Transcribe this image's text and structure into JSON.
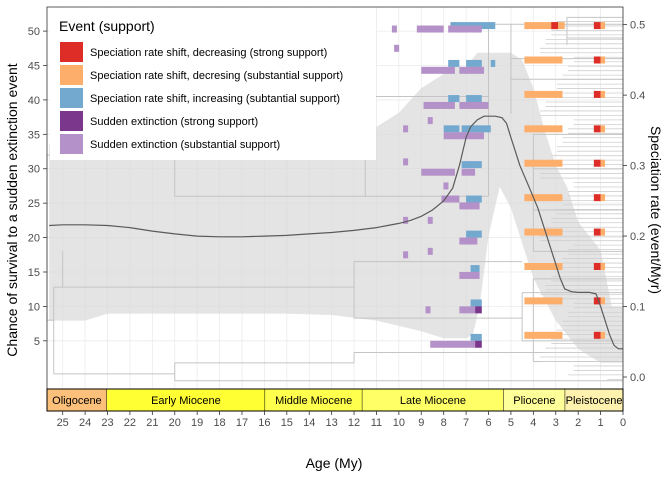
{
  "chart_data": {
    "type": "line",
    "title": "",
    "xlabel": "Age (My)",
    "ylabel_left": "Chance of survival to a sudden extinction event",
    "ylabel_right": "Speciation rate (event/Myr)",
    "x_ticks": [
      25,
      24,
      23,
      22,
      21,
      20,
      19,
      18,
      17,
      16,
      15,
      14,
      13,
      12,
      11,
      10,
      9,
      8,
      7,
      6,
      5,
      4,
      3,
      2,
      1,
      0
    ],
    "x_range": [
      25.7,
      0
    ],
    "y_left_ticks": [
      5,
      10,
      15,
      20,
      25,
      30,
      35,
      40,
      45,
      50
    ],
    "y_left_range": [
      -2,
      53.5
    ],
    "y_right_ticks": [
      "0.0",
      "0.1",
      "0.2",
      "0.3",
      "0.4",
      "0.5"
    ],
    "y_right_range": [
      -0.017,
      0.525
    ],
    "legend": {
      "title": "Event (support)",
      "position": "top-left",
      "items": [
        {
          "label": "Speciation rate shift, decreasing (strong support)",
          "color": "#DE2D26"
        },
        {
          "label": "Speciation rate shift, decresing (substantial support)",
          "color": "#FDAE6B"
        },
        {
          "label": "Speciation rate shift, increasing (subtantial support)",
          "color": "#74A9CF"
        },
        {
          "label": "Sudden extinction (strong support)",
          "color": "#7A378B"
        },
        {
          "label": "Sudden extinction (substantial support)",
          "color": "#B491C8"
        }
      ]
    },
    "epochs": [
      {
        "name": "Oligocene",
        "start": 25.7,
        "end": 23.03,
        "color": "#FDC07A"
      },
      {
        "name": "Early Miocene",
        "start": 23.03,
        "end": 15.97,
        "color": "#FFFF33"
      },
      {
        "name": "Middle Miocene",
        "start": 15.97,
        "end": 11.63,
        "color": "#FFFF4D"
      },
      {
        "name": "Late Miocene",
        "start": 11.63,
        "end": 5.33,
        "color": "#FFFF66"
      },
      {
        "name": "Pliocene",
        "start": 5.33,
        "end": 2.58,
        "color": "#FFFF99"
      },
      {
        "name": "Pleistocene",
        "start": 2.58,
        "end": 0.0,
        "color": "#FFF2AE"
      }
    ],
    "speciation_rate_series": {
      "name": "Speciation rate (right axis)",
      "x": [
        25.6,
        25,
        24,
        23,
        22,
        21,
        20,
        19,
        18,
        17,
        16,
        15,
        14,
        13,
        12,
        11,
        10,
        9.5,
        9,
        8.5,
        8,
        7.6,
        7.3,
        7.0,
        6.8,
        6.5,
        6.2,
        6.0,
        5.7,
        5.4,
        5.2,
        5.0,
        4.6,
        4.2,
        3.8,
        3.4,
        3.0,
        2.8,
        2.6,
        2.3,
        2.0,
        1.8,
        1.5,
        1.2,
        1.0,
        0.8,
        0.6,
        0.4,
        0.2,
        0.0
      ],
      "y": [
        0.215,
        0.216,
        0.216,
        0.215,
        0.212,
        0.207,
        0.203,
        0.2,
        0.199,
        0.199,
        0.2,
        0.201,
        0.203,
        0.205,
        0.208,
        0.212,
        0.218,
        0.222,
        0.228,
        0.237,
        0.25,
        0.268,
        0.3,
        0.34,
        0.355,
        0.365,
        0.37,
        0.37,
        0.37,
        0.368,
        0.36,
        0.34,
        0.3,
        0.27,
        0.24,
        0.2,
        0.16,
        0.14,
        0.125,
        0.121,
        0.12,
        0.12,
        0.12,
        0.118,
        0.1,
        0.08,
        0.06,
        0.045,
        0.04,
        0.04
      ]
    },
    "speciation_rate_ci_upper": {
      "x": [
        25.6,
        17,
        15.5,
        15,
        12,
        10,
        9,
        8,
        7.5,
        7,
        6.5,
        6,
        5.5,
        5,
        4.5,
        4,
        3.5,
        3,
        2.5,
        2,
        1.5,
        1,
        0.5,
        0
      ],
      "y": [
        0.33,
        0.33,
        0.33,
        0.335,
        0.335,
        0.375,
        0.41,
        0.43,
        0.44,
        0.44,
        0.46,
        0.46,
        0.46,
        0.46,
        0.45,
        0.41,
        0.35,
        0.3,
        0.27,
        0.22,
        0.2,
        0.18,
        0.1,
        0.1
      ]
    },
    "speciation_rate_ci_lower": {
      "x": [
        25.6,
        24,
        23,
        21,
        19,
        17,
        15,
        13,
        11,
        9,
        8,
        7.5,
        7,
        6.7,
        6.4,
        6.0,
        5.5,
        5.0,
        4.5,
        4.0,
        3.5,
        3.0,
        2.5,
        2.0,
        1.5,
        1.0,
        0.5,
        0
      ],
      "y": [
        0.08,
        0.08,
        0.09,
        0.09,
        0.09,
        0.09,
        0.09,
        0.088,
        0.08,
        0.065,
        0.055,
        0.055,
        0.055,
        0.06,
        0.1,
        0.2,
        0.27,
        0.24,
        0.19,
        0.14,
        0.11,
        0.08,
        0.06,
        0.04,
        0.03,
        0.02,
        0.02,
        0.02
      ]
    },
    "event_markers": [
      {
        "support": 4,
        "x": 10.2,
        "y": 50.3
      },
      {
        "support": 4,
        "x": 9.7,
        "y": 35.8
      },
      {
        "support": 4,
        "x": 9.7,
        "y": 31.0
      },
      {
        "support": 4,
        "x": 9.7,
        "y": 22.5
      },
      {
        "support": 4,
        "x": 9.7,
        "y": 17.5
      },
      {
        "support": 4,
        "x": 8.6,
        "y": 37.0
      },
      {
        "support": 4,
        "x": 8.6,
        "y": 22.5
      },
      {
        "support": 4,
        "x": 8.6,
        "y": 18.0
      },
      {
        "support": 4,
        "x": 7.9,
        "y": 27.5
      },
      {
        "support": 4,
        "x": 8.7,
        "y": 9.5
      },
      {
        "support": 4,
        "x": 10.1,
        "y": 47.5
      }
    ],
    "event_bars": [
      {
        "support": 2,
        "x_start": 7.7,
        "x_end": 5.7,
        "y": 50.8
      },
      {
        "support": 4,
        "x_start": 9.2,
        "x_end": 8.0,
        "y": 50.3
      },
      {
        "support": 4,
        "x_start": 7.8,
        "x_end": 6.3,
        "y": 50.3
      },
      {
        "support": 2,
        "x_start": 7.8,
        "x_end": 7.3,
        "y": 45.3
      },
      {
        "support": 2,
        "x_start": 7.0,
        "x_end": 6.3,
        "y": 45.3
      },
      {
        "support": 2,
        "x_start": 5.9,
        "x_end": 5.7,
        "y": 45.3
      },
      {
        "support": 4,
        "x_start": 9.0,
        "x_end": 7.5,
        "y": 44.3
      },
      {
        "support": 4,
        "x_start": 7.3,
        "x_end": 6.2,
        "y": 44.3
      },
      {
        "support": 2,
        "x_start": 7.8,
        "x_end": 7.3,
        "y": 40.2
      },
      {
        "support": 2,
        "x_start": 7.0,
        "x_end": 6.3,
        "y": 40.2
      },
      {
        "support": 4,
        "x_start": 8.9,
        "x_end": 7.5,
        "y": 39.2
      },
      {
        "support": 4,
        "x_start": 7.3,
        "x_end": 6.0,
        "y": 39.2
      },
      {
        "support": 2,
        "x_start": 8.0,
        "x_end": 7.3,
        "y": 35.8
      },
      {
        "support": 2,
        "x_start": 7.2,
        "x_end": 5.9,
        "y": 35.8
      },
      {
        "support": 4,
        "x_start": 8.0,
        "x_end": 6.2,
        "y": 34.8
      },
      {
        "support": 2,
        "x_start": 7.2,
        "x_end": 6.3,
        "y": 30.6
      },
      {
        "support": 4,
        "x_start": 9.0,
        "x_end": 7.5,
        "y": 29.5
      },
      {
        "support": 4,
        "x_start": 7.2,
        "x_end": 6.6,
        "y": 29.5
      },
      {
        "support": 2,
        "x_start": 7.0,
        "x_end": 6.3,
        "y": 25.6
      },
      {
        "support": 4,
        "x_start": 8.1,
        "x_end": 7.3,
        "y": 25.6
      },
      {
        "support": 4,
        "x_start": 7.3,
        "x_end": 6.4,
        "y": 24.6
      },
      {
        "support": 2,
        "x_start": 7.0,
        "x_end": 6.3,
        "y": 20.5
      },
      {
        "support": 4,
        "x_start": 7.3,
        "x_end": 6.5,
        "y": 19.5
      },
      {
        "support": 2,
        "x_start": 6.8,
        "x_end": 6.4,
        "y": 15.5
      },
      {
        "support": 4,
        "x_start": 7.3,
        "x_end": 6.4,
        "y": 14.5
      },
      {
        "support": 2,
        "x_start": 6.8,
        "x_end": 6.3,
        "y": 10.5
      },
      {
        "support": 3,
        "x_start": 6.6,
        "x_end": 6.3,
        "y": 9.5
      },
      {
        "support": 4,
        "x_start": 7.3,
        "x_end": 6.6,
        "y": 9.5
      },
      {
        "support": 2,
        "x_start": 6.8,
        "x_end": 6.3,
        "y": 5.5
      },
      {
        "support": 3,
        "x_start": 6.6,
        "x_end": 6.3,
        "y": 4.5
      },
      {
        "support": 4,
        "x_start": 8.6,
        "x_end": 6.6,
        "y": 4.5
      },
      {
        "support": 1,
        "x_start": 4.4,
        "x_end": 2.6,
        "y": 50.8
      },
      {
        "support": 1,
        "x_start": 4.4,
        "x_end": 2.7,
        "y": 45.8
      },
      {
        "support": 1,
        "x_start": 4.4,
        "x_end": 2.7,
        "y": 40.8
      },
      {
        "support": 1,
        "x_start": 4.4,
        "x_end": 2.7,
        "y": 35.8
      },
      {
        "support": 1,
        "x_start": 4.4,
        "x_end": 2.7,
        "y": 30.8
      },
      {
        "support": 1,
        "x_start": 4.4,
        "x_end": 2.7,
        "y": 25.8
      },
      {
        "support": 1,
        "x_start": 4.4,
        "x_end": 2.7,
        "y": 20.8
      },
      {
        "support": 1,
        "x_start": 4.4,
        "x_end": 2.7,
        "y": 15.8
      },
      {
        "support": 1,
        "x_start": 4.4,
        "x_end": 2.7,
        "y": 10.8
      },
      {
        "support": 1,
        "x_start": 4.4,
        "x_end": 2.7,
        "y": 5.8
      },
      {
        "support": 0,
        "x_start": 3.2,
        "x_end": 2.9,
        "y": 50.8
      },
      {
        "support": 0,
        "x_start": 1.3,
        "x_end": 1.0,
        "y": 50.8
      },
      {
        "support": 1,
        "x_start": 1.0,
        "x_end": 0.8,
        "y": 50.8
      },
      {
        "support": 0,
        "x_start": 1.3,
        "x_end": 1.0,
        "y": 45.8
      },
      {
        "support": 1,
        "x_start": 1.0,
        "x_end": 0.8,
        "y": 45.8
      },
      {
        "support": 0,
        "x_start": 1.3,
        "x_end": 1.0,
        "y": 40.8
      },
      {
        "support": 1,
        "x_start": 1.0,
        "x_end": 0.8,
        "y": 40.8
      },
      {
        "support": 0,
        "x_start": 1.3,
        "x_end": 1.0,
        "y": 35.8
      },
      {
        "support": 1,
        "x_start": 1.0,
        "x_end": 0.8,
        "y": 35.8
      },
      {
        "support": 0,
        "x_start": 1.3,
        "x_end": 1.0,
        "y": 30.8
      },
      {
        "support": 1,
        "x_start": 1.0,
        "x_end": 0.8,
        "y": 30.8
      },
      {
        "support": 0,
        "x_start": 1.3,
        "x_end": 1.0,
        "y": 25.8
      },
      {
        "support": 1,
        "x_start": 1.0,
        "x_end": 0.8,
        "y": 25.8
      },
      {
        "support": 0,
        "x_start": 1.3,
        "x_end": 1.0,
        "y": 20.8
      },
      {
        "support": 1,
        "x_start": 1.0,
        "x_end": 0.8,
        "y": 20.8
      },
      {
        "support": 0,
        "x_start": 1.3,
        "x_end": 1.0,
        "y": 15.8
      },
      {
        "support": 1,
        "x_start": 1.0,
        "x_end": 0.8,
        "y": 15.8
      },
      {
        "support": 0,
        "x_start": 1.3,
        "x_end": 1.0,
        "y": 10.8
      },
      {
        "support": 1,
        "x_start": 1.0,
        "x_end": 0.8,
        "y": 10.8
      },
      {
        "support": 0,
        "x_start": 1.3,
        "x_end": 1.0,
        "y": 5.8
      },
      {
        "support": 1,
        "x_start": 1.0,
        "x_end": 0.8,
        "y": 5.8
      }
    ],
    "tree_segments": [
      {
        "x1": 25.7,
        "x2": 25.7,
        "y1": 8,
        "y2": 32
      },
      {
        "x1": 25.7,
        "x2": 20.0,
        "y1": 32,
        "y2": 32
      },
      {
        "x1": 25.7,
        "x2": 25.4,
        "y1": 8,
        "y2": 8
      },
      {
        "x1": 25.4,
        "x2": 25.4,
        "y1": 0.2,
        "y2": 12.8
      },
      {
        "x1": 25.4,
        "x2": 20.0,
        "y1": 0.2,
        "y2": 0.2
      },
      {
        "x1": 25.4,
        "x2": 25.0,
        "y1": 12.8,
        "y2": 12.8
      },
      {
        "x1": 20.0,
        "x2": 20.0,
        "y1": 1.8,
        "y2": -0.8
      },
      {
        "x1": 20.0,
        "x2": 0,
        "y1": -0.8,
        "y2": -0.8
      },
      {
        "x1": 20.0,
        "x2": 12.0,
        "y1": 1.8,
        "y2": 1.8
      },
      {
        "x1": 12.0,
        "x2": 12.0,
        "y1": 1.8,
        "y2": 3.3
      },
      {
        "x1": 12.0,
        "x2": 0,
        "y1": 3.3,
        "y2": 3.3
      },
      {
        "x1": 25.0,
        "x2": 25.0,
        "y1": 12.8,
        "y2": 18
      },
      {
        "x1": 25.0,
        "x2": 12.0,
        "y1": 12.8,
        "y2": 12.8
      },
      {
        "x1": 20.0,
        "x2": 20.0,
        "y1": 26,
        "y2": 34
      },
      {
        "x1": 20.0,
        "x2": 11.5,
        "y1": 26,
        "y2": 26
      },
      {
        "x1": 20.0,
        "x2": 11.5,
        "y1": 34,
        "y2": 34
      },
      {
        "x1": 11.5,
        "x2": 11.5,
        "y1": 26,
        "y2": 40.5
      },
      {
        "x1": 11.5,
        "x2": 6.0,
        "y1": 40.5,
        "y2": 40.5
      },
      {
        "x1": 11.5,
        "x2": 6.0,
        "y1": 26,
        "y2": 26
      },
      {
        "x1": 12.0,
        "x2": 12.0,
        "y1": 8.3,
        "y2": 16.5
      },
      {
        "x1": 12.0,
        "x2": 4.5,
        "y1": 8.3,
        "y2": 8.3
      },
      {
        "x1": 12.0,
        "x2": 4.5,
        "y1": 16.5,
        "y2": 16.5
      },
      {
        "x1": 4.5,
        "x2": 4.5,
        "y1": 5,
        "y2": 12
      },
      {
        "x1": 4.5,
        "x2": 0,
        "y1": 5,
        "y2": 5
      },
      {
        "x1": 4.5,
        "x2": 0,
        "y1": 12,
        "y2": 12
      },
      {
        "x1": 4.0,
        "x2": 4.0,
        "y1": 2,
        "y2": 14
      },
      {
        "x1": 4.0,
        "x2": 0,
        "y1": 14,
        "y2": 14
      },
      {
        "x1": 4.0,
        "x2": 0,
        "y1": 2,
        "y2": 2
      },
      {
        "x1": 6.0,
        "x2": 6.0,
        "y1": 26,
        "y2": 51
      },
      {
        "x1": 6.0,
        "x2": 0,
        "y1": 51,
        "y2": 51
      },
      {
        "x1": 5.0,
        "x2": 5.0,
        "y1": 38,
        "y2": 51
      },
      {
        "x1": 5.0,
        "x2": 0,
        "y1": 46,
        "y2": 46
      },
      {
        "x1": 5.0,
        "x2": 0,
        "y1": 43,
        "y2": 43
      },
      {
        "x1": 4.0,
        "x2": 4.0,
        "y1": 18,
        "y2": 35
      },
      {
        "x1": 4.0,
        "x2": 0,
        "y1": 35,
        "y2": 35
      },
      {
        "x1": 4.0,
        "x2": 0,
        "y1": 30,
        "y2": 30
      },
      {
        "x1": 4.0,
        "x2": 0,
        "y1": 24,
        "y2": 24
      },
      {
        "x1": 4.0,
        "x2": 0,
        "y1": 18,
        "y2": 18
      },
      {
        "x1": 2.5,
        "x2": 2.5,
        "y1": 48,
        "y2": 52
      },
      {
        "x1": 2.5,
        "x2": 0,
        "y1": 52,
        "y2": 52
      },
      {
        "x1": 2.5,
        "x2": 0,
        "y1": 49,
        "y2": 49
      }
    ]
  }
}
